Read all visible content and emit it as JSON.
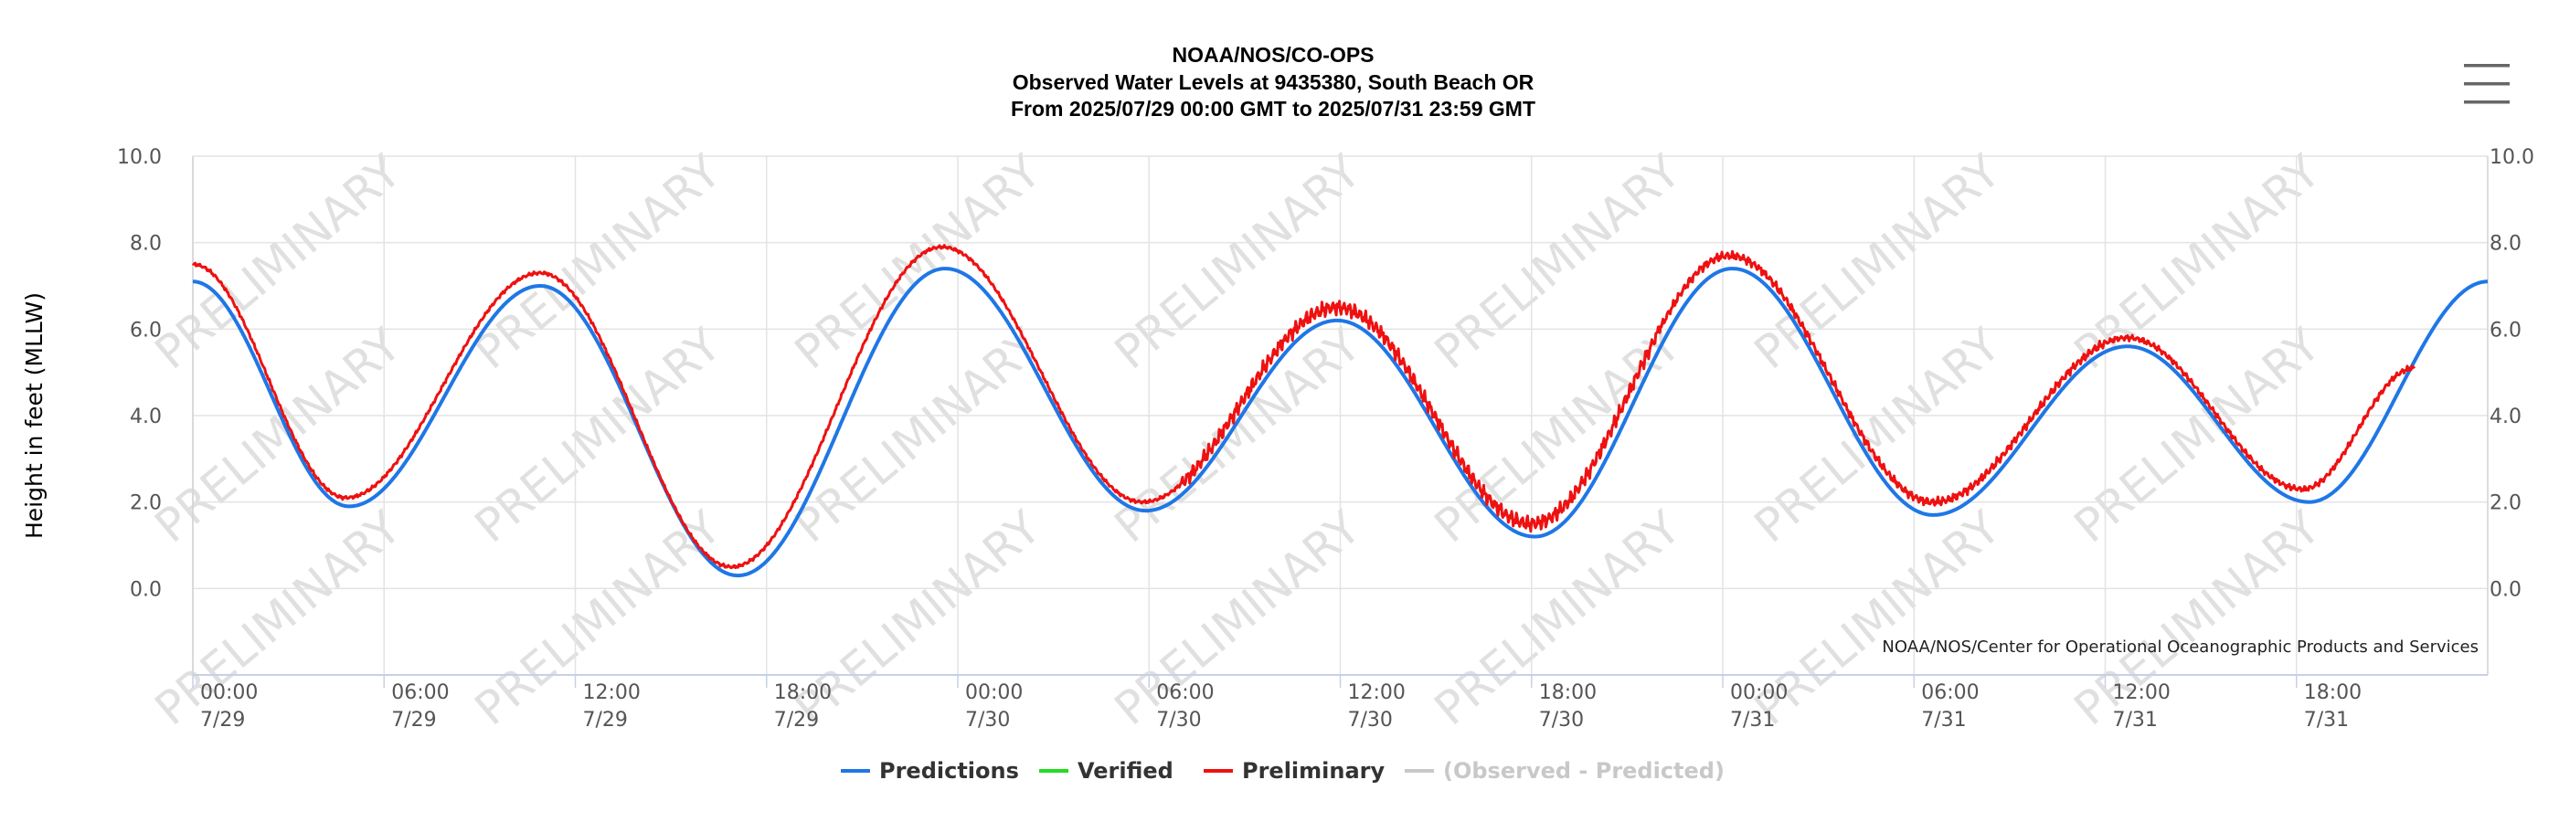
{
  "menu": {
    "icon": "hamburger-menu-icon"
  },
  "chart_data": {
    "type": "line",
    "title_lines": [
      "NOAA/NOS/CO-OPS",
      "Observed Water Levels at 9435380, South Beach OR",
      "From 2025/07/29 00:00 GMT to 2025/07/31 23:59 GMT"
    ],
    "ylabel": "Height in feet (MLLW)",
    "ylim": [
      -2.0,
      10.0
    ],
    "yticks": [
      "10.0",
      "8.0",
      "6.0",
      "4.0",
      "2.0",
      "0.0"
    ],
    "ytick_values": [
      10,
      8,
      6,
      4,
      2,
      0
    ],
    "x_unit": "hours since 2025/07/29 00:00 GMT",
    "xlim": [
      0,
      72
    ],
    "xticks": [
      {
        "time": "00:00",
        "date": "7/29",
        "h": 0
      },
      {
        "time": "06:00",
        "date": "7/29",
        "h": 6
      },
      {
        "time": "12:00",
        "date": "7/29",
        "h": 12
      },
      {
        "time": "18:00",
        "date": "7/29",
        "h": 18
      },
      {
        "time": "00:00",
        "date": "7/30",
        "h": 24
      },
      {
        "time": "06:00",
        "date": "7/30",
        "h": 30
      },
      {
        "time": "12:00",
        "date": "7/30",
        "h": 36
      },
      {
        "time": "18:00",
        "date": "7/30",
        "h": 42
      },
      {
        "time": "00:00",
        "date": "7/31",
        "h": 48
      },
      {
        "time": "06:00",
        "date": "7/31",
        "h": 54
      },
      {
        "time": "12:00",
        "date": "7/31",
        "h": 60
      },
      {
        "time": "18:00",
        "date": "7/31",
        "h": 66
      }
    ],
    "grid": true,
    "watermark": "PRELIMINARY",
    "credit": "NOAA/NOS/Center for Operational Oceanographic Products and Services",
    "legend_position": "bottom-center",
    "series": [
      {
        "name": "Predictions",
        "color": "#1f77e6",
        "points": [
          [
            0,
            7.1
          ],
          [
            4.9,
            1.9
          ],
          [
            10.9,
            7.0
          ],
          [
            17.1,
            0.3
          ],
          [
            23.6,
            7.4
          ],
          [
            29.9,
            1.8
          ],
          [
            35.9,
            6.2
          ],
          [
            42.1,
            1.2
          ],
          [
            48.3,
            7.4
          ],
          [
            54.6,
            1.7
          ],
          [
            60.7,
            5.6
          ],
          [
            66.4,
            2.0
          ],
          [
            72,
            7.1
          ]
        ]
      },
      {
        "name": "Verified",
        "color": "#22dd22",
        "points": []
      },
      {
        "name": "Preliminary",
        "color": "#ee1111",
        "points": [
          [
            0,
            7.5
          ],
          [
            4.8,
            2.1
          ],
          [
            10.9,
            7.3
          ],
          [
            16.9,
            0.5
          ],
          [
            23.5,
            7.9
          ],
          [
            29.8,
            2.0
          ],
          [
            35.9,
            6.5
          ],
          [
            42.0,
            1.5
          ],
          [
            48.2,
            7.7
          ],
          [
            54.6,
            2.0
          ],
          [
            60.7,
            5.8
          ],
          [
            66.2,
            2.3
          ],
          [
            69.7,
            5.1
          ]
        ]
      },
      {
        "name": "(Observed - Predicted)",
        "color": "#c8c8c8",
        "points": []
      }
    ]
  }
}
